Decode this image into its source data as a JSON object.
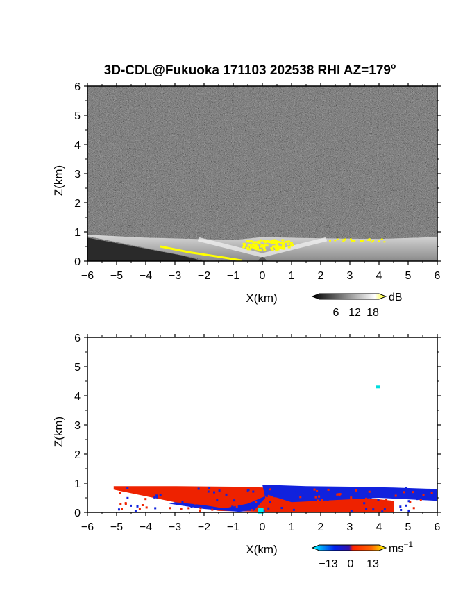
{
  "title": "3D-CDL@Fukuoka 171103 202538 RHI AZ=179",
  "title_sup": "o",
  "chart_data": [
    {
      "type": "heatmap",
      "name": "reflectivity",
      "xlabel": "X(km)",
      "ylabel": "Z(km)",
      "xlim": [
        -6,
        6
      ],
      "ylim": [
        0,
        6
      ],
      "xticks": [
        "−6",
        "−5",
        "−4",
        "−3",
        "−2",
        "−1",
        "0",
        "1",
        "2",
        "3",
        "4",
        "5",
        "6"
      ],
      "yticks": [
        "0",
        "1",
        "2",
        "3",
        "4",
        "5",
        "6"
      ],
      "colorbar": {
        "unit": "dB",
        "ticks": [
          "6",
          "12",
          "18"
        ],
        "colors": [
          "#000000",
          "#ffffff",
          "#ffff00"
        ]
      },
      "background": "noise (grayscale)",
      "regions": [
        {
          "desc": "bright return below ~0.8 km",
          "x": [
            -6,
            6
          ],
          "z": [
            0,
            0.85
          ]
        },
        {
          "desc": "yellow (>18 dB) core",
          "x": [
            -0.7,
            1
          ],
          "z": [
            0.4,
            0.75
          ]
        }
      ]
    },
    {
      "type": "heatmap",
      "name": "doppler velocity",
      "xlabel": "X(km)",
      "ylabel": "Z(km)",
      "xlim": [
        -6,
        6
      ],
      "ylim": [
        0,
        6
      ],
      "xticks": [
        "−6",
        "−5",
        "−4",
        "−3",
        "−2",
        "−1",
        "0",
        "1",
        "2",
        "3",
        "4",
        "5",
        "6"
      ],
      "yticks": [
        "0",
        "1",
        "2",
        "3",
        "4",
        "5",
        "6"
      ],
      "colorbar": {
        "unit": "ms",
        "unit_sup": "−1",
        "ticks": [
          "−13",
          "0",
          "13"
        ],
        "colors": [
          "#00ffff",
          "#0022ee",
          "#ff2200",
          "#ffff00"
        ]
      },
      "regions": [
        {
          "desc": "red (~+3 m/s) layer",
          "x": [
            -5.1,
            4.5
          ],
          "z": [
            0,
            0.9
          ]
        },
        {
          "desc": "blue (~−3 m/s) layer",
          "x": [
            0,
            6
          ],
          "z": [
            0.35,
            0.95
          ]
        },
        {
          "desc": "cyan point",
          "x": [
            3.9,
            4
          ],
          "z": [
            4.25,
            4.35
          ]
        }
      ]
    }
  ]
}
